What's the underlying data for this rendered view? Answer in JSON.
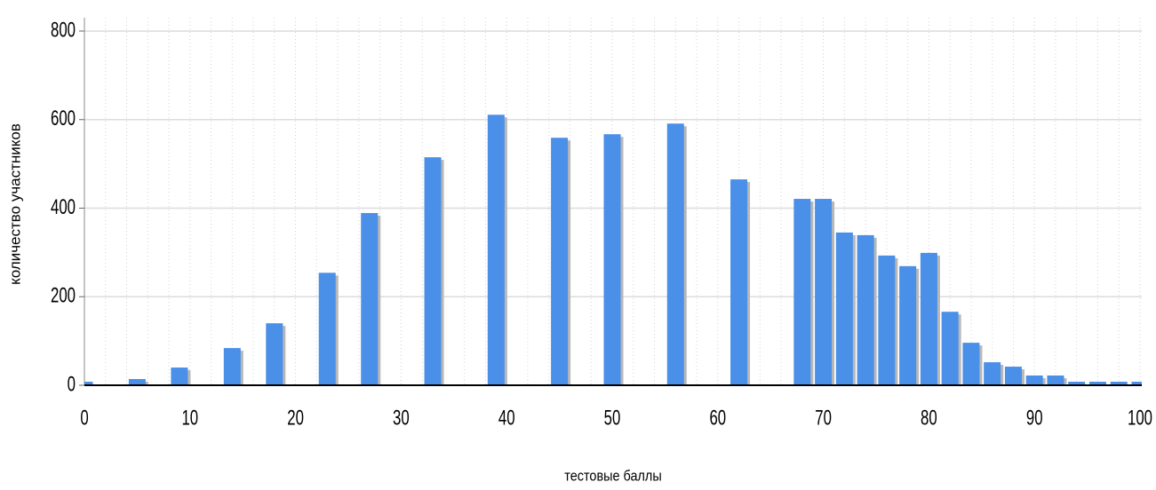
{
  "chart_data": {
    "type": "bar",
    "x_label": "тестовые баллы",
    "y_label": "количество участников",
    "x": [
      0,
      5,
      9,
      14,
      18,
      23,
      27,
      33,
      39,
      45,
      50,
      56,
      62,
      68,
      70,
      72,
      74,
      76,
      78,
      80,
      82,
      84,
      86,
      88,
      90,
      92,
      94,
      96,
      98,
      100
    ],
    "values": [
      8,
      14,
      40,
      84,
      140,
      254,
      389,
      515,
      611,
      559,
      567,
      591,
      465,
      421,
      421,
      345,
      339,
      293,
      269,
      299,
      166,
      96,
      52,
      42,
      22,
      22,
      8,
      8,
      8,
      8
    ],
    "color": "#4a8fe8",
    "xlim": [
      0,
      100
    ],
    "xticks": [
      0,
      10,
      20,
      30,
      40,
      50,
      60,
      70,
      80,
      90,
      100
    ],
    "ylim": [
      0,
      800
    ],
    "yticks": [
      0,
      200,
      400,
      600,
      800
    ],
    "grid": true
  }
}
